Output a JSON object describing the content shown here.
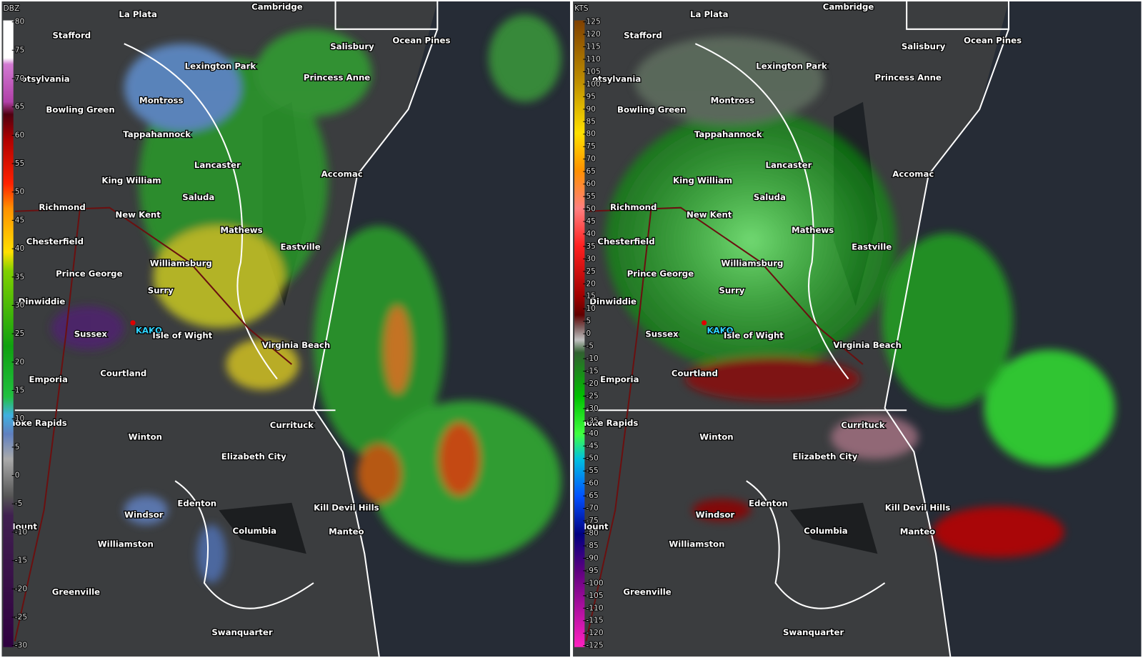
{
  "panels": [
    {
      "unit": "DBZ",
      "scale": [
        80,
        75,
        70,
        65,
        60,
        55,
        50,
        45,
        40,
        35,
        30,
        25,
        20,
        15,
        10,
        5,
        0,
        -5,
        -10,
        -15,
        -20,
        -25,
        -30
      ]
    },
    {
      "unit": "KTS",
      "scale": [
        125,
        120,
        115,
        110,
        105,
        100,
        95,
        90,
        85,
        80,
        75,
        70,
        65,
        60,
        55,
        50,
        45,
        40,
        35,
        30,
        25,
        20,
        15,
        10,
        5,
        0,
        -5,
        -10,
        -15,
        -20,
        -25,
        -30,
        -35,
        -40,
        -45,
        -50,
        -55,
        -60,
        -65,
        -70,
        -75,
        -80,
        -85,
        -90,
        -95,
        -100,
        -105,
        -110,
        -115,
        -120,
        -125
      ]
    }
  ],
  "radar_site": "KAKQ",
  "places": [
    "La Plata",
    "Cambridge",
    "Stafford",
    "Salisbury",
    "Ocean Pines",
    "Lexington Park",
    "Princess Anne",
    "otsylvania",
    "Montross",
    "Bowling Green",
    "Tappahannock",
    "Lancaster",
    "Accomac",
    "King William",
    "Saluda",
    "Richmond",
    "New Kent",
    "Mathews",
    "Chesterfield",
    "Eastville",
    "Williamsburg",
    "Prince George",
    "Surry",
    "Dinwiddie",
    "Sussex",
    "Isle of Wight",
    "Virginia Beach",
    "Emporia",
    "Courtland",
    "noke Rapids",
    "Currituck",
    "Winton",
    "Elizabeth City",
    "Edenton",
    "Windsor",
    "Kill Devil Hills",
    "Columbia",
    "Manteo",
    "Mount",
    "Williamston",
    "Greenville",
    "Swanquarter"
  ]
}
